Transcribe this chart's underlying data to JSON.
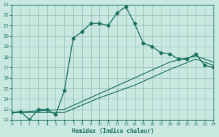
{
  "xlabel": "Humidex (Indice chaleur)",
  "xlim": [
    0,
    23
  ],
  "ylim": [
    12,
    23
  ],
  "xticks": [
    0,
    1,
    2,
    3,
    4,
    5,
    6,
    7,
    8,
    9,
    10,
    11,
    12,
    13,
    14,
    15,
    16,
    17,
    18,
    19,
    20,
    21,
    22,
    23
  ],
  "yticks": [
    12,
    13,
    14,
    15,
    16,
    17,
    18,
    19,
    20,
    21,
    22,
    23
  ],
  "bg_color": "#c8e8e0",
  "grid_color": "#a0c8c0",
  "line_color": "#1a7060",
  "line1_x": [
    0,
    1,
    2,
    3,
    4,
    5,
    6,
    7,
    8,
    9,
    10,
    11,
    12,
    13,
    14,
    15,
    16,
    17,
    18,
    19,
    20,
    21,
    22,
    23
  ],
  "line1_y": [
    12.7,
    12.8,
    12.0,
    13.0,
    13.0,
    12.5,
    14.8,
    19.8,
    20.4,
    21.2,
    21.2,
    21.0,
    22.2,
    22.8,
    21.2,
    19.3,
    19.0,
    18.4,
    18.3,
    17.8,
    17.8,
    18.3,
    17.2,
    17.0
  ],
  "line2_x": [
    0,
    6,
    10,
    14,
    18,
    21,
    23
  ],
  "line2_y": [
    12.7,
    12.7,
    14.1,
    15.3,
    16.8,
    17.8,
    17.2
  ],
  "line3_x": [
    0,
    6,
    10,
    14,
    18,
    21,
    23
  ],
  "line3_y": [
    12.7,
    13.0,
    14.5,
    16.0,
    17.5,
    18.1,
    17.5
  ]
}
